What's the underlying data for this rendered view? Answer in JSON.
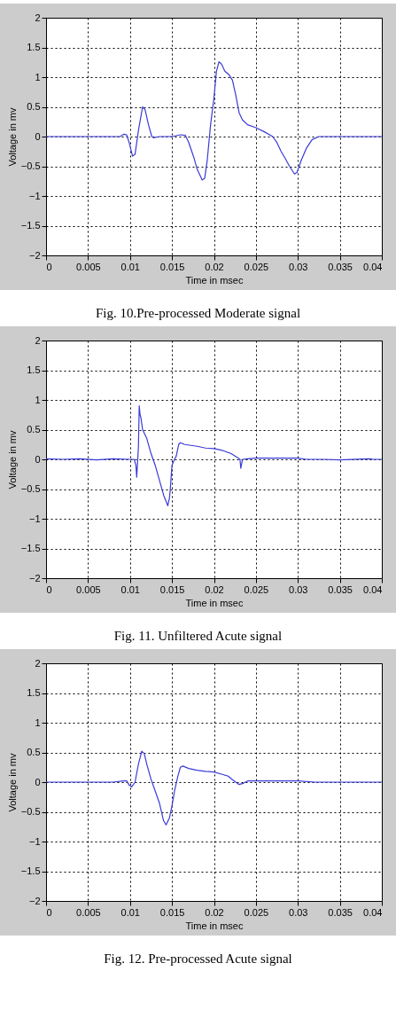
{
  "chart_data": [
    {
      "type": "line",
      "xlabel": "Time in msec",
      "ylabel": "Voltage in mv",
      "xlim": [
        0,
        0.04
      ],
      "ylim": [
        -2,
        2
      ],
      "xticks": [
        0,
        0.005,
        0.01,
        0.015,
        0.02,
        0.025,
        0.03,
        0.035,
        0.04
      ],
      "yticks": [
        -2,
        -1.5,
        -1,
        -0.5,
        0,
        0.5,
        1,
        1.5,
        2
      ],
      "grid": true,
      "annotations": [
        "Fig. 10.Pre-processed Moderate signal"
      ],
      "x": [
        0,
        0.008,
        0.0088,
        0.0093,
        0.0096,
        0.0099,
        0.0103,
        0.0106,
        0.011,
        0.0115,
        0.0118,
        0.0122,
        0.0126,
        0.0128,
        0.0135,
        0.015,
        0.016,
        0.0166,
        0.017,
        0.0176,
        0.018,
        0.0186,
        0.0189,
        0.0192,
        0.0196,
        0.02,
        0.0203,
        0.0206,
        0.0209,
        0.0213,
        0.0218,
        0.0222,
        0.0226,
        0.023,
        0.0234,
        0.024,
        0.025,
        0.026,
        0.027,
        0.0275,
        0.028,
        0.0285,
        0.029,
        0.0296,
        0.0299,
        0.0304,
        0.031,
        0.0317,
        0.0325,
        0.04
      ],
      "series": [
        {
          "color": "#3b3bd8",
          "values": [
            0,
            0,
            0,
            0.04,
            0.03,
            -0.1,
            -0.33,
            -0.3,
            0.1,
            0.5,
            0.45,
            0.2,
            0,
            -0.02,
            0,
            0,
            0.03,
            0.02,
            -0.1,
            -0.35,
            -0.55,
            -0.73,
            -0.7,
            -0.4,
            0.2,
            0.65,
            1.1,
            1.26,
            1.22,
            1.1,
            1.04,
            0.95,
            0.7,
            0.4,
            0.28,
            0.2,
            0.15,
            0.08,
            0,
            -0.1,
            -0.25,
            -0.37,
            -0.5,
            -0.63,
            -0.6,
            -0.4,
            -0.2,
            -0.05,
            0,
            0
          ]
        }
      ]
    },
    {
      "type": "line",
      "xlabel": "Time in msec",
      "ylabel": "Voltage in mv",
      "xlim": [
        0,
        0.04
      ],
      "ylim": [
        -2,
        2
      ],
      "xticks": [
        0,
        0.005,
        0.01,
        0.015,
        0.02,
        0.025,
        0.03,
        0.035,
        0.04
      ],
      "yticks": [
        -2,
        -1.5,
        -1,
        -0.5,
        0,
        0.5,
        1,
        1.5,
        2
      ],
      "grid": true,
      "annotations": [
        "Fig. 11. Unfiltered Acute signal"
      ],
      "x": [
        0,
        0.002,
        0.004,
        0.006,
        0.008,
        0.0099,
        0.0105,
        0.0107,
        0.0108,
        0.011,
        0.0111,
        0.0112,
        0.0113,
        0.0115,
        0.012,
        0.0125,
        0.013,
        0.0135,
        0.014,
        0.0145,
        0.0147,
        0.0148,
        0.0149,
        0.015,
        0.0153,
        0.0155,
        0.0158,
        0.016,
        0.0165,
        0.018,
        0.019,
        0.02,
        0.021,
        0.022,
        0.0228,
        0.0231,
        0.0232,
        0.0234,
        0.024,
        0.025,
        0.027,
        0.03,
        0.031,
        0.033,
        0.035,
        0.0385,
        0.039,
        0.04
      ],
      "series": [
        {
          "color": "#3b3bd8",
          "values": [
            0.01,
            0,
            0.01,
            -0.01,
            0.01,
            0,
            0,
            -0.1,
            -0.3,
            0.2,
            0.9,
            0.75,
            0.7,
            0.5,
            0.35,
            0.1,
            -0.1,
            -0.35,
            -0.6,
            -0.78,
            -0.65,
            -0.5,
            -0.3,
            -0.1,
            0,
            0.05,
            0.25,
            0.28,
            0.25,
            0.22,
            0.19,
            0.18,
            0.15,
            0.1,
            0.03,
            0,
            -0.15,
            0,
            0.01,
            0.02,
            0.02,
            0.02,
            0,
            0,
            -0.01,
            0.01,
            0,
            0
          ]
        }
      ]
    },
    {
      "type": "line",
      "xlabel": "Time in msec",
      "ylabel": "Voltage in mv",
      "xlim": [
        0,
        0.04
      ],
      "ylim": [
        -2,
        2
      ],
      "xticks": [
        0,
        0.005,
        0.01,
        0.015,
        0.02,
        0.025,
        0.03,
        0.035,
        0.04
      ],
      "yticks": [
        -2,
        -1.5,
        -1,
        -0.5,
        0,
        0.5,
        1,
        1.5,
        2
      ],
      "grid": true,
      "annotations": [
        "Fig. 12. Pre-processed Acute signal"
      ],
      "x": [
        0,
        0.008,
        0.0092,
        0.0096,
        0.0099,
        0.0102,
        0.0106,
        0.011,
        0.0114,
        0.0117,
        0.012,
        0.0125,
        0.013,
        0.0135,
        0.014,
        0.0143,
        0.0147,
        0.015,
        0.0153,
        0.0157,
        0.016,
        0.0163,
        0.017,
        0.018,
        0.019,
        0.02,
        0.021,
        0.0217,
        0.0222,
        0.023,
        0.0235,
        0.024,
        0.025,
        0.03,
        0.032,
        0.04
      ],
      "series": [
        {
          "color": "#3b3bd8",
          "values": [
            0,
            0,
            0.02,
            0.02,
            -0.05,
            -0.08,
            0,
            0.3,
            0.52,
            0.48,
            0.3,
            0.05,
            -0.15,
            -0.35,
            -0.65,
            -0.72,
            -0.6,
            -0.4,
            -0.15,
            0.1,
            0.25,
            0.27,
            0.23,
            0.2,
            0.18,
            0.17,
            0.13,
            0.1,
            0.04,
            -0.04,
            -0.02,
            0.02,
            0.02,
            0.02,
            0,
            0
          ]
        }
      ]
    }
  ]
}
